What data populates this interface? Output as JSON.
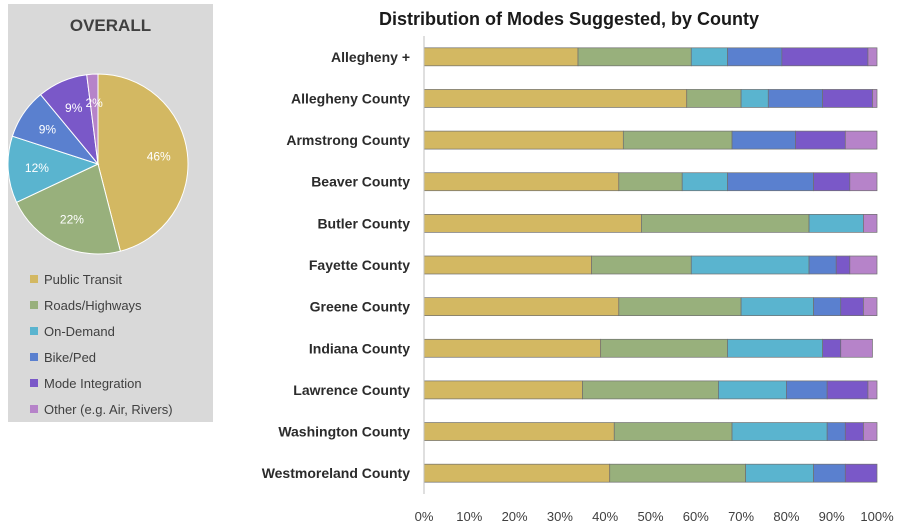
{
  "chart_data": [
    {
      "type": "pie",
      "title": "OVERALL",
      "series": [
        {
          "name": "Public Transit",
          "value": 46,
          "label": "46%"
        },
        {
          "name": "Roads/Highways",
          "value": 22,
          "label": "22%"
        },
        {
          "name": "On-Demand",
          "value": 12,
          "label": "12%"
        },
        {
          "name": "Bike/Ped",
          "value": 9,
          "label": "9%"
        },
        {
          "name": "Mode Integration",
          "value": 9,
          "label": "9%"
        },
        {
          "name": "Other (e.g. Air, Rivers)",
          "value": 2,
          "label": "2%"
        }
      ],
      "legend_position": "bottom"
    },
    {
      "type": "bar",
      "orientation": "horizontal",
      "stacked": "100%",
      "title": "Distribution of Modes Suggested, by County",
      "categories": [
        "Allegheny +",
        "Allegheny County",
        "Armstrong County",
        "Beaver County",
        "Butler County",
        "Fayette County",
        "Greene County",
        "Indiana County",
        "Lawrence County",
        "Washington County",
        "Westmoreland County"
      ],
      "series": [
        {
          "name": "Public Transit",
          "values": [
            34,
            58,
            44,
            43,
            48,
            37,
            43,
            39,
            35,
            42,
            41
          ]
        },
        {
          "name": "Roads/Highways",
          "values": [
            25,
            12,
            24,
            14,
            37,
            22,
            27,
            28,
            30,
            26,
            30
          ]
        },
        {
          "name": "On-Demand",
          "values": [
            8,
            6,
            0,
            10,
            12,
            26,
            16,
            21,
            15,
            21,
            15
          ]
        },
        {
          "name": "Bike/Ped",
          "values": [
            12,
            12,
            14,
            19,
            0,
            6,
            6,
            0,
            9,
            4,
            7
          ]
        },
        {
          "name": "Mode Integration",
          "values": [
            19,
            11,
            11,
            8,
            0,
            3,
            5,
            4,
            9,
            4,
            7
          ]
        },
        {
          "name": "Other (e.g. Air, Rivers)",
          "values": [
            2,
            1,
            7,
            6,
            3,
            6,
            3,
            7,
            2,
            3,
            0
          ]
        }
      ],
      "x_ticks": [
        "0%",
        "10%",
        "20%",
        "30%",
        "40%",
        "50%",
        "60%",
        "70%",
        "80%",
        "90%",
        "100%"
      ],
      "xlim": [
        0,
        100
      ],
      "grid": false
    }
  ],
  "colors": {
    "Public Transit": "#d3b862",
    "Roads/Highways": "#98b07c",
    "On-Demand": "#5ab4cf",
    "Bike/Ped": "#5a80cf",
    "Mode Integration": "#7a58c8",
    "Other (e.g. Air, Rivers)": "#b683c9"
  }
}
